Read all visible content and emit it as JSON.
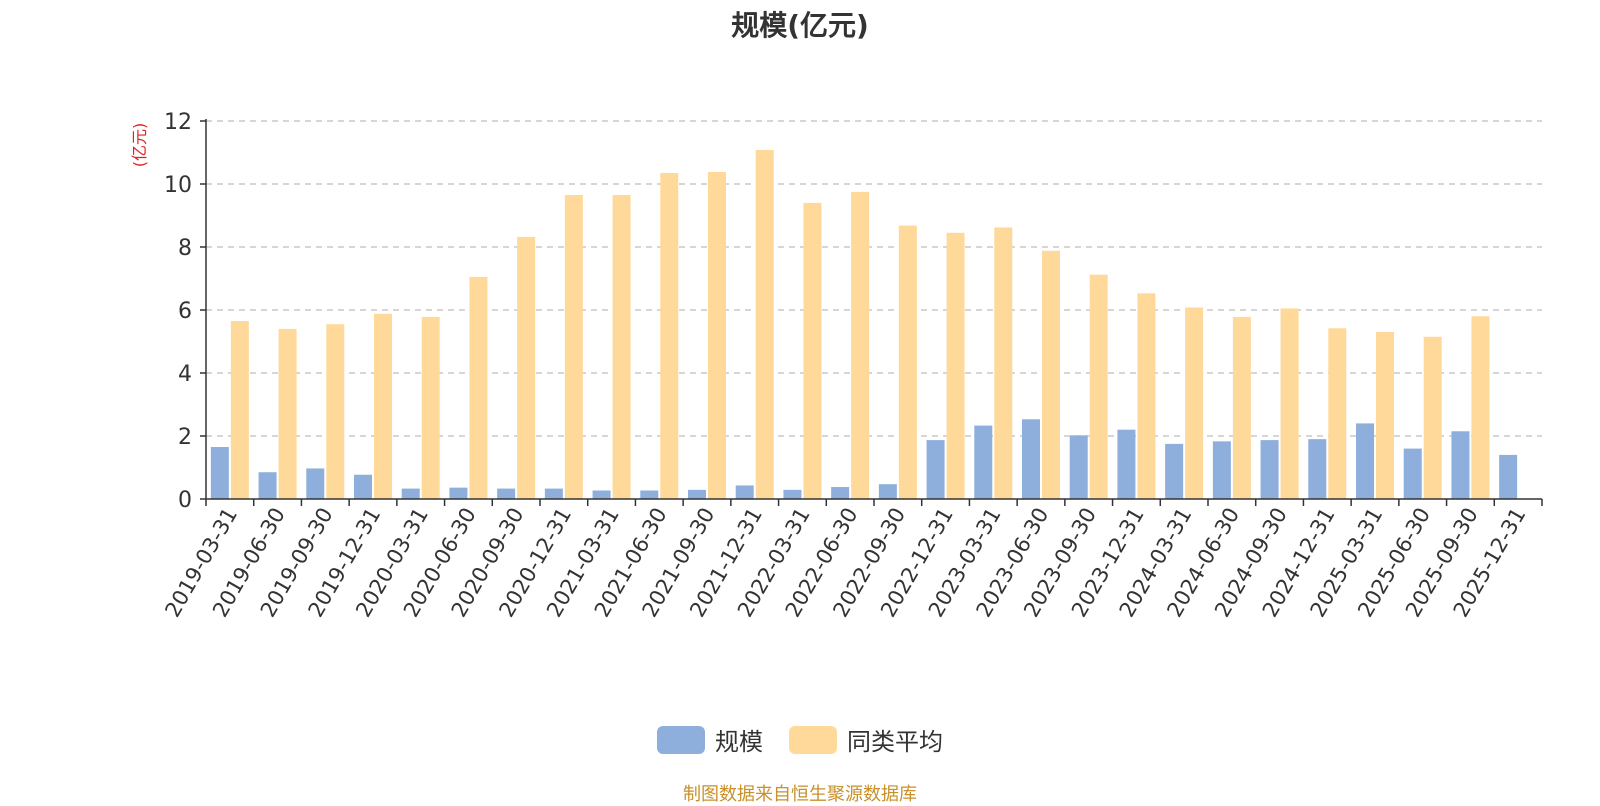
{
  "chart_data": {
    "type": "bar",
    "title": "规模(亿元)",
    "ylabel": "(亿元)",
    "xlabel": "",
    "ylim": [
      0,
      12
    ],
    "yticks": [
      0,
      2,
      4,
      6,
      8,
      10,
      12
    ],
    "grid": true,
    "legend_position": "bottom",
    "categories": [
      "2019-03-31",
      "2019-06-30",
      "2019-09-30",
      "2019-12-31",
      "2020-03-31",
      "2020-06-30",
      "2020-09-30",
      "2020-12-31",
      "2021-03-31",
      "2021-06-30",
      "2021-09-30",
      "2021-12-31",
      "2022-03-31",
      "2022-06-30",
      "2022-09-30",
      "2022-12-31",
      "2023-03-31",
      "2023-06-30",
      "2023-09-30",
      "2023-12-31",
      "2024-03-31",
      "2024-06-30",
      "2024-09-30",
      "2024-12-31",
      "2025-03-31",
      "2025-06-30",
      "2025-09-30",
      "2025-12-31"
    ],
    "series": [
      {
        "name": "规模",
        "color": "#8eaedb",
        "values": [
          1.65,
          0.85,
          0.97,
          0.77,
          0.33,
          0.36,
          0.33,
          0.33,
          0.27,
          0.27,
          0.29,
          0.43,
          0.29,
          0.38,
          0.47,
          1.87,
          2.33,
          2.53,
          2.02,
          2.2,
          1.75,
          1.83,
          1.87,
          1.9,
          2.4,
          1.6,
          2.15,
          1.4
        ]
      },
      {
        "name": "同类平均",
        "color": "#ffd99a",
        "values": [
          5.65,
          5.4,
          5.55,
          5.88,
          5.78,
          7.05,
          8.32,
          9.65,
          9.65,
          10.35,
          10.38,
          11.08,
          9.4,
          9.75,
          8.68,
          8.45,
          8.62,
          7.88,
          7.12,
          6.53,
          6.08,
          5.78,
          6.05,
          5.42,
          5.3,
          5.15,
          5.8,
          null
        ]
      }
    ]
  },
  "source_note": "制图数据来自恒生聚源数据库"
}
